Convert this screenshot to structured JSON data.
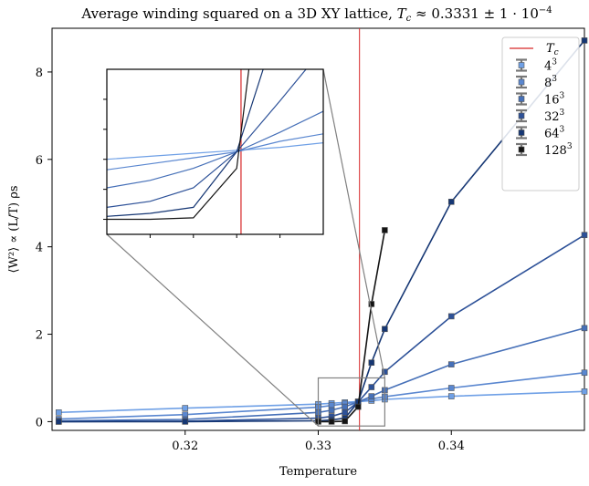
{
  "chart_data": {
    "type": "line",
    "title": "Average winding squared on a 3D XY lattice, $T_c \\approx 0.3331 \\pm 1 \\cdot 10^{-4}$",
    "title_parts": {
      "main": "Average winding squared on a 3D XY lattice, ",
      "tc_sym": "T",
      "tc_sub": "c",
      "approx": " ≈ 0.3331 ± 1 · 10",
      "exp": "−4"
    },
    "xlabel": "Temperature",
    "ylabel": "⟨W²⟩ ∝ (L/T) ρs",
    "xlim": [
      0.31,
      0.35
    ],
    "ylim": [
      -0.2,
      9.0
    ],
    "xticks": [
      0.32,
      0.33,
      0.34
    ],
    "xtick_labels": [
      "0.32",
      "0.33",
      "0.34"
    ],
    "yticks": [
      0,
      2,
      4,
      6,
      8
    ],
    "ytick_labels": [
      "0",
      "2",
      "4",
      "6",
      "8"
    ],
    "Tc": 0.3331,
    "legend_position": "top-right",
    "legend_tc_label": "Tc",
    "series": [
      {
        "name": "4³",
        "base": "4",
        "sup": "3",
        "color": "#6fa0e6",
        "x": [
          0.3105,
          0.32,
          0.33,
          0.331,
          0.332,
          0.333,
          0.334,
          0.335,
          0.34,
          0.35
        ],
        "y": [
          0.21,
          0.31,
          0.4,
          0.42,
          0.44,
          0.46,
          0.48,
          0.51,
          0.58,
          0.69
        ]
      },
      {
        "name": "8³",
        "base": "8",
        "sup": "3",
        "color": "#5a87d0",
        "x": [
          0.3105,
          0.32,
          0.33,
          0.331,
          0.332,
          0.333,
          0.334,
          0.335,
          0.34,
          0.35
        ],
        "y": [
          0.06,
          0.16,
          0.33,
          0.37,
          0.41,
          0.45,
          0.52,
          0.57,
          0.77,
          1.12
        ]
      },
      {
        "name": "16³",
        "base": "16",
        "sup": "3",
        "color": "#4670b8",
        "x": [
          0.3105,
          0.32,
          0.33,
          0.331,
          0.332,
          0.333,
          0.334,
          0.335,
          0.34,
          0.35
        ],
        "y": [
          0.02,
          0.05,
          0.21,
          0.26,
          0.34,
          0.45,
          0.58,
          0.72,
          1.31,
          2.14
        ]
      },
      {
        "name": "32³",
        "base": "32",
        "sup": "3",
        "color": "#2d5198",
        "x": [
          0.3105,
          0.32,
          0.33,
          0.331,
          0.332,
          0.333,
          0.334,
          0.335,
          0.34,
          0.35
        ],
        "y": [
          0.0,
          0.01,
          0.08,
          0.12,
          0.21,
          0.45,
          0.79,
          1.14,
          2.41,
          4.27
        ]
      },
      {
        "name": "64³",
        "base": "64",
        "sup": "3",
        "color": "#163774",
        "x": [
          0.3105,
          0.32,
          0.33,
          0.331,
          0.332,
          0.333,
          0.334,
          0.335,
          0.34,
          0.35
        ],
        "y": [
          0.0,
          0.0,
          0.02,
          0.04,
          0.08,
          0.45,
          1.35,
          2.12,
          5.03,
          8.72
        ]
      },
      {
        "name": "128³",
        "base": "128",
        "sup": "3",
        "color": "#141414",
        "x": [
          0.33,
          0.331,
          0.332,
          0.333,
          0.334,
          0.335
        ],
        "y": [
          0.0,
          0.0,
          0.01,
          0.34,
          2.69,
          4.38
        ]
      }
    ],
    "inset": {
      "xlim": [
        0.33,
        0.335
      ],
      "ylim": [
        -0.1,
        1.0
      ],
      "zoom_box_xlim": [
        0.33,
        0.335
      ],
      "zoom_box_ylim": [
        -0.1,
        1.0
      ]
    }
  }
}
